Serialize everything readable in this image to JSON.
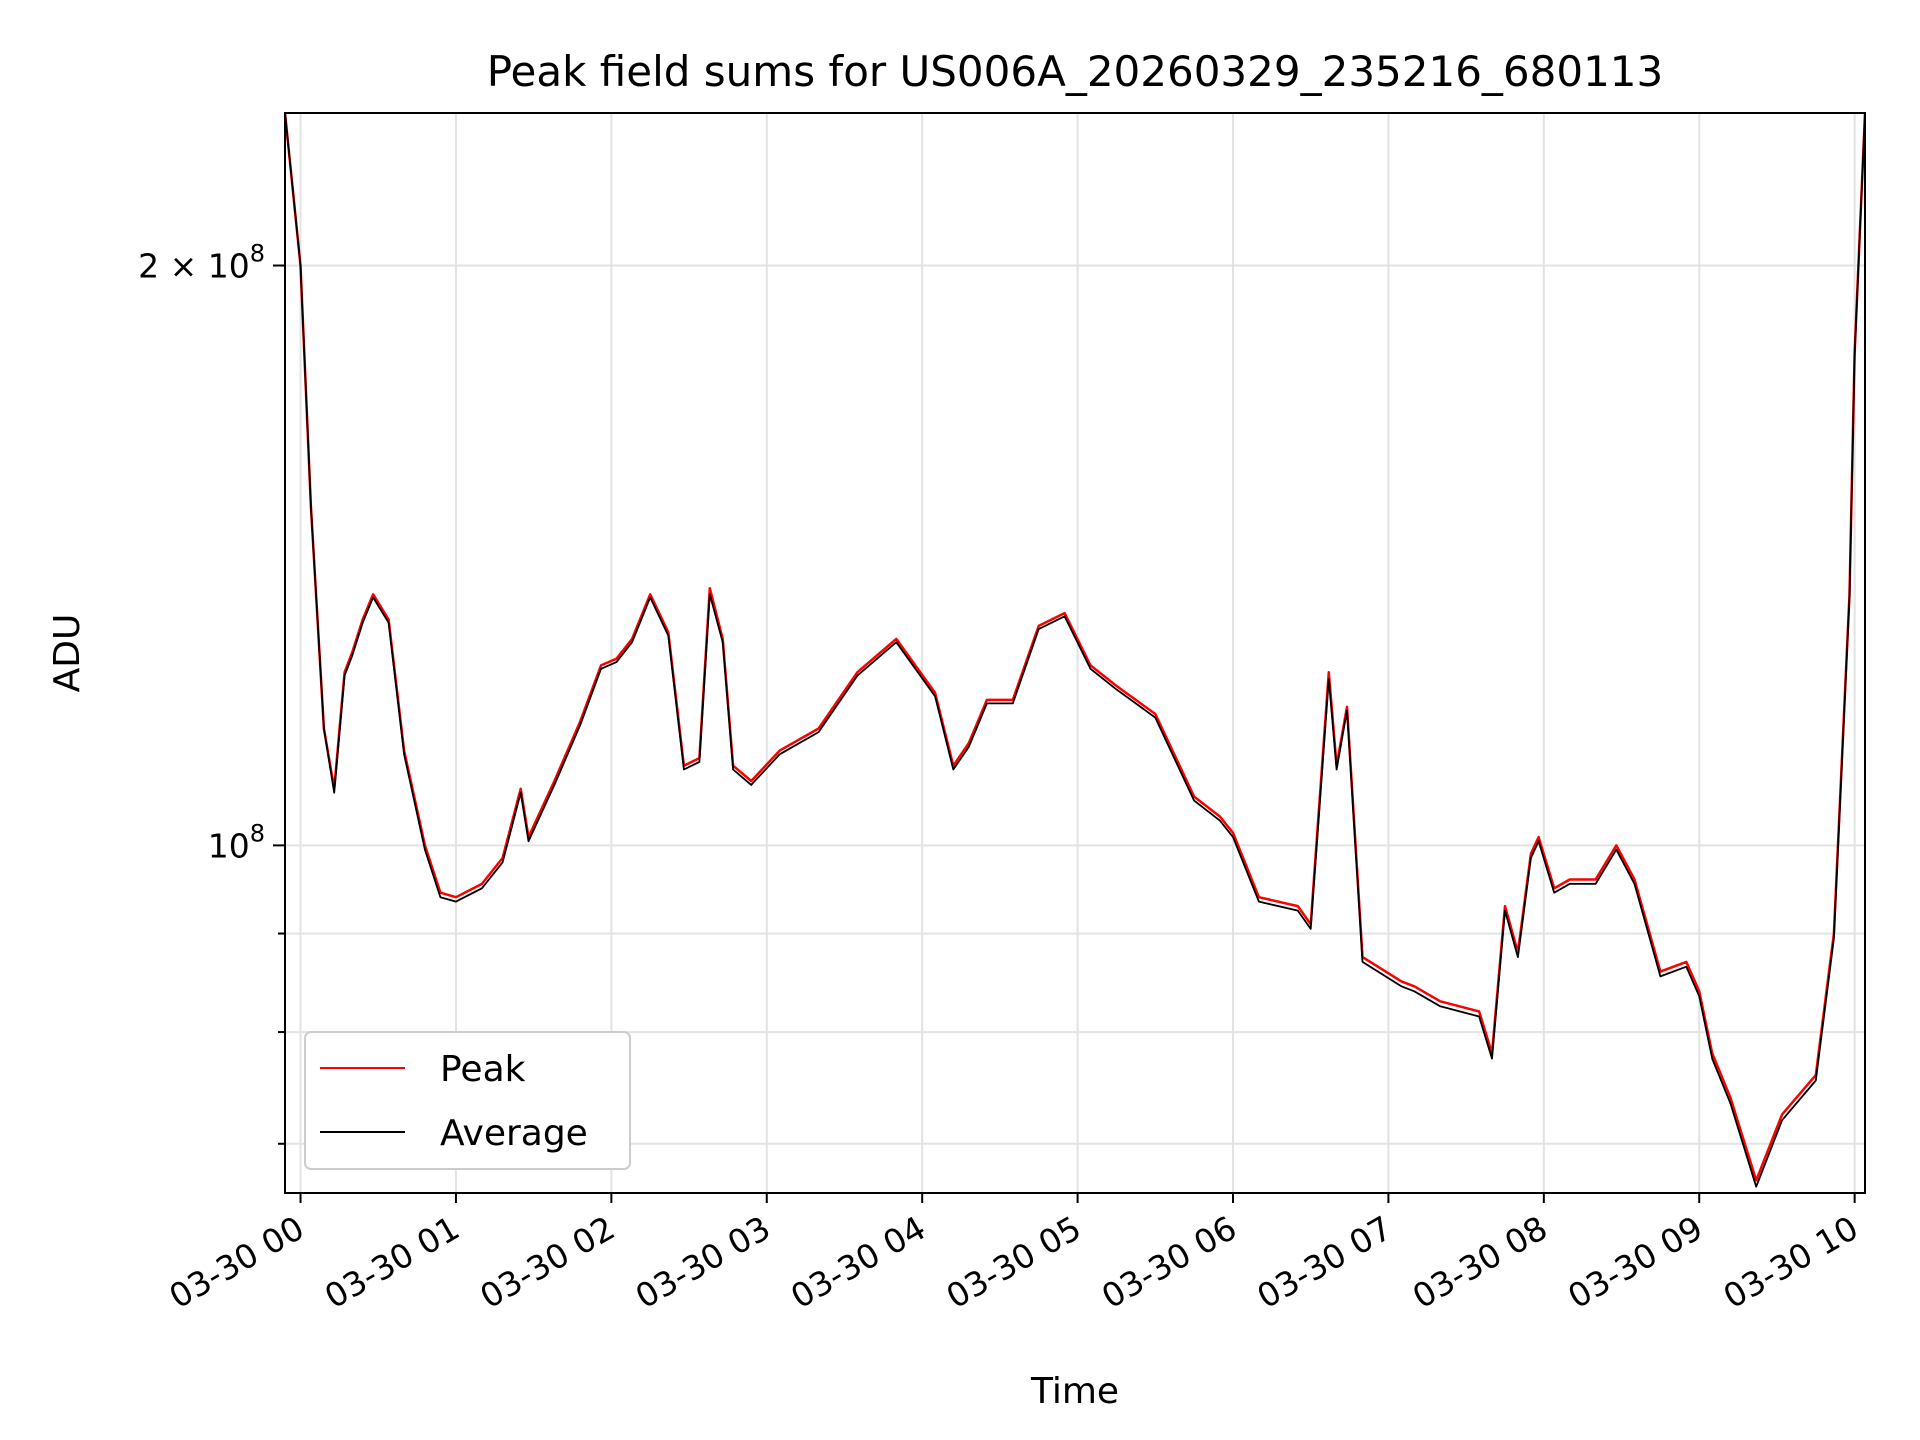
{
  "chart_data": {
    "type": "line",
    "title": "Peak field sums for US006A_20260329_235216_680113",
    "xlabel": "Time",
    "ylabel": "ADU",
    "yscale": "log",
    "grid": true,
    "legend_position": "lower-left",
    "xlim": [
      "2026-03-29T23:54",
      "2026-03-30T10:04"
    ],
    "ylim": [
      66000000,
      240000000
    ],
    "x_ticks": [
      {
        "time": "2026-03-30T00:00",
        "label": "03-30 00"
      },
      {
        "time": "2026-03-30T01:00",
        "label": "03-30 01"
      },
      {
        "time": "2026-03-30T02:00",
        "label": "03-30 02"
      },
      {
        "time": "2026-03-30T03:00",
        "label": "03-30 03"
      },
      {
        "time": "2026-03-30T04:00",
        "label": "03-30 04"
      },
      {
        "time": "2026-03-30T05:00",
        "label": "03-30 05"
      },
      {
        "time": "2026-03-30T06:00",
        "label": "03-30 06"
      },
      {
        "time": "2026-03-30T07:00",
        "label": "03-30 07"
      },
      {
        "time": "2026-03-30T08:00",
        "label": "03-30 08"
      },
      {
        "time": "2026-03-30T09:00",
        "label": "03-30 09"
      },
      {
        "time": "2026-03-30T10:00",
        "label": "03-30 10"
      }
    ],
    "y_ticks": [
      {
        "value": 100000000,
        "base": "10",
        "exp": "8",
        "coef": ""
      },
      {
        "value": 200000000,
        "base": "10",
        "exp": "8",
        "coef": "2 × "
      }
    ],
    "y_minor_ticks": [
      70000000,
      80000000,
      90000000
    ],
    "series": [
      {
        "name": "Peak",
        "color": "#ff0000",
        "points": [
          [
            "2026-03-29T23:54",
            240000000
          ],
          [
            "2026-03-30T00:00",
            200000000
          ],
          [
            "2026-03-30T00:04",
            150000000
          ],
          [
            "2026-03-30T00:09",
            115000000
          ],
          [
            "2026-03-30T00:13",
            107000000
          ],
          [
            "2026-03-30T00:17",
            123000000
          ],
          [
            "2026-03-30T00:20",
            126000000
          ],
          [
            "2026-03-30T00:24",
            131000000
          ],
          [
            "2026-03-30T00:28",
            135000000
          ],
          [
            "2026-03-30T00:34",
            131000000
          ],
          [
            "2026-03-30T00:40",
            112000000
          ],
          [
            "2026-03-30T00:48",
            100000000
          ],
          [
            "2026-03-30T00:54",
            94500000
          ],
          [
            "2026-03-30T01:00",
            94000000
          ],
          [
            "2026-03-30T01:10",
            95500000
          ],
          [
            "2026-03-30T01:18",
            98500000
          ],
          [
            "2026-03-30T01:25",
            107000000
          ],
          [
            "2026-03-30T01:28",
            101000000
          ],
          [
            "2026-03-30T01:38",
            108000000
          ],
          [
            "2026-03-30T01:48",
            116000000
          ],
          [
            "2026-03-30T01:56",
            124000000
          ],
          [
            "2026-03-30T02:02",
            125000000
          ],
          [
            "2026-03-30T02:08",
            128000000
          ],
          [
            "2026-03-30T02:15",
            135000000
          ],
          [
            "2026-03-30T02:22",
            129000000
          ],
          [
            "2026-03-30T02:28",
            110000000
          ],
          [
            "2026-03-30T02:34",
            111000000
          ],
          [
            "2026-03-30T02:38",
            136000000
          ],
          [
            "2026-03-30T02:43",
            128000000
          ],
          [
            "2026-03-30T02:47",
            110000000
          ],
          [
            "2026-03-30T02:54",
            108000000
          ],
          [
            "2026-03-30T03:05",
            112000000
          ],
          [
            "2026-03-30T03:20",
            115000000
          ],
          [
            "2026-03-30T03:35",
            123000000
          ],
          [
            "2026-03-30T03:50",
            128000000
          ],
          [
            "2026-03-30T04:05",
            120000000
          ],
          [
            "2026-03-30T04:12",
            110000000
          ],
          [
            "2026-03-30T04:18",
            113000000
          ],
          [
            "2026-03-30T04:25",
            119000000
          ],
          [
            "2026-03-30T04:35",
            119000000
          ],
          [
            "2026-03-30T04:45",
            130000000
          ],
          [
            "2026-03-30T04:55",
            132000000
          ],
          [
            "2026-03-30T05:05",
            124000000
          ],
          [
            "2026-03-30T05:15",
            121000000
          ],
          [
            "2026-03-30T05:30",
            117000000
          ],
          [
            "2026-03-30T05:45",
            106000000
          ],
          [
            "2026-03-30T05:55",
            103500000
          ],
          [
            "2026-03-30T06:00",
            101500000
          ],
          [
            "2026-03-30T06:10",
            94000000
          ],
          [
            "2026-03-30T06:25",
            93000000
          ],
          [
            "2026-03-30T06:30",
            91000000
          ],
          [
            "2026-03-30T06:37",
            123000000
          ],
          [
            "2026-03-30T06:40",
            110000000
          ],
          [
            "2026-03-30T06:44",
            118000000
          ],
          [
            "2026-03-30T06:50",
            87500000
          ],
          [
            "2026-03-30T07:05",
            85000000
          ],
          [
            "2026-03-30T07:10",
            84500000
          ],
          [
            "2026-03-30T07:20",
            83000000
          ],
          [
            "2026-03-30T07:35",
            82000000
          ],
          [
            "2026-03-30T07:40",
            78000000
          ],
          [
            "2026-03-30T07:45",
            93000000
          ],
          [
            "2026-03-30T07:50",
            88000000
          ],
          [
            "2026-03-30T07:55",
            99000000
          ],
          [
            "2026-03-30T07:58",
            101000000
          ],
          [
            "2026-03-30T08:04",
            95000000
          ],
          [
            "2026-03-30T08:10",
            96000000
          ],
          [
            "2026-03-30T08:20",
            96000000
          ],
          [
            "2026-03-30T08:28",
            100000000
          ],
          [
            "2026-03-30T08:35",
            96000000
          ],
          [
            "2026-03-30T08:45",
            86000000
          ],
          [
            "2026-03-30T08:55",
            87000000
          ],
          [
            "2026-03-30T09:00",
            84000000
          ],
          [
            "2026-03-30T09:05",
            78000000
          ],
          [
            "2026-03-30T09:12",
            74000000
          ],
          [
            "2026-03-30T09:22",
            67000000
          ],
          [
            "2026-03-30T09:32",
            72500000
          ],
          [
            "2026-03-30T09:45",
            76000000
          ],
          [
            "2026-03-30T09:52",
            90000000
          ],
          [
            "2026-03-30T09:58",
            135000000
          ],
          [
            "2026-03-30T10:00",
            180000000
          ],
          [
            "2026-03-30T10:04",
            240000000
          ]
        ]
      },
      {
        "name": "Average",
        "color": "#000000",
        "points": [
          [
            "2026-03-29T23:54",
            240000000
          ],
          [
            "2026-03-30T00:00",
            200000000
          ],
          [
            "2026-03-30T00:04",
            150000000
          ],
          [
            "2026-03-30T00:09",
            115000000
          ],
          [
            "2026-03-30T00:13",
            106500000
          ],
          [
            "2026-03-30T00:17",
            122500000
          ],
          [
            "2026-03-30T00:20",
            125500000
          ],
          [
            "2026-03-30T00:24",
            130500000
          ],
          [
            "2026-03-30T00:28",
            134500000
          ],
          [
            "2026-03-30T00:34",
            130500000
          ],
          [
            "2026-03-30T00:40",
            111500000
          ],
          [
            "2026-03-30T00:48",
            99500000
          ],
          [
            "2026-03-30T00:54",
            94000000
          ],
          [
            "2026-03-30T01:00",
            93500000
          ],
          [
            "2026-03-30T01:10",
            95000000
          ],
          [
            "2026-03-30T01:18",
            98000000
          ],
          [
            "2026-03-30T01:25",
            106500000
          ],
          [
            "2026-03-30T01:28",
            100500000
          ],
          [
            "2026-03-30T01:38",
            107500000
          ],
          [
            "2026-03-30T01:48",
            115500000
          ],
          [
            "2026-03-30T01:56",
            123500000
          ],
          [
            "2026-03-30T02:02",
            124500000
          ],
          [
            "2026-03-30T02:08",
            127500000
          ],
          [
            "2026-03-30T02:15",
            134500000
          ],
          [
            "2026-03-30T02:22",
            128500000
          ],
          [
            "2026-03-30T02:28",
            109500000
          ],
          [
            "2026-03-30T02:34",
            110500000
          ],
          [
            "2026-03-30T02:38",
            135000000
          ],
          [
            "2026-03-30T02:43",
            127500000
          ],
          [
            "2026-03-30T02:47",
            109500000
          ],
          [
            "2026-03-30T02:54",
            107500000
          ],
          [
            "2026-03-30T03:05",
            111500000
          ],
          [
            "2026-03-30T03:20",
            114500000
          ],
          [
            "2026-03-30T03:35",
            122500000
          ],
          [
            "2026-03-30T03:50",
            127500000
          ],
          [
            "2026-03-30T04:05",
            119500000
          ],
          [
            "2026-03-30T04:12",
            109500000
          ],
          [
            "2026-03-30T04:18",
            112500000
          ],
          [
            "2026-03-30T04:25",
            118500000
          ],
          [
            "2026-03-30T04:35",
            118500000
          ],
          [
            "2026-03-30T04:45",
            129500000
          ],
          [
            "2026-03-30T04:55",
            131500000
          ],
          [
            "2026-03-30T05:05",
            123500000
          ],
          [
            "2026-03-30T05:15",
            120500000
          ],
          [
            "2026-03-30T05:30",
            116500000
          ],
          [
            "2026-03-30T05:45",
            105500000
          ],
          [
            "2026-03-30T05:55",
            103000000
          ],
          [
            "2026-03-30T06:00",
            101000000
          ],
          [
            "2026-03-30T06:10",
            93500000
          ],
          [
            "2026-03-30T06:25",
            92500000
          ],
          [
            "2026-03-30T06:30",
            90500000
          ],
          [
            "2026-03-30T06:37",
            122000000
          ],
          [
            "2026-03-30T06:40",
            109500000
          ],
          [
            "2026-03-30T06:44",
            117500000
          ],
          [
            "2026-03-30T06:50",
            87000000
          ],
          [
            "2026-03-30T07:05",
            84500000
          ],
          [
            "2026-03-30T07:10",
            84000000
          ],
          [
            "2026-03-30T07:20",
            82500000
          ],
          [
            "2026-03-30T07:35",
            81500000
          ],
          [
            "2026-03-30T07:40",
            77500000
          ],
          [
            "2026-03-30T07:45",
            92500000
          ],
          [
            "2026-03-30T07:50",
            87500000
          ],
          [
            "2026-03-30T07:55",
            98500000
          ],
          [
            "2026-03-30T07:58",
            100500000
          ],
          [
            "2026-03-30T08:04",
            94500000
          ],
          [
            "2026-03-30T08:10",
            95500000
          ],
          [
            "2026-03-30T08:20",
            95500000
          ],
          [
            "2026-03-30T08:28",
            99500000
          ],
          [
            "2026-03-30T08:35",
            95500000
          ],
          [
            "2026-03-30T08:45",
            85500000
          ],
          [
            "2026-03-30T08:55",
            86500000
          ],
          [
            "2026-03-30T09:00",
            83500000
          ],
          [
            "2026-03-30T09:05",
            77500000
          ],
          [
            "2026-03-30T09:12",
            73500000
          ],
          [
            "2026-03-30T09:22",
            66500000
          ],
          [
            "2026-03-30T09:32",
            72000000
          ],
          [
            "2026-03-30T09:45",
            75500000
          ],
          [
            "2026-03-30T09:52",
            89500000
          ],
          [
            "2026-03-30T09:58",
            134500000
          ],
          [
            "2026-03-30T10:00",
            179500000
          ],
          [
            "2026-03-30T10:04",
            240000000
          ]
        ]
      }
    ]
  }
}
